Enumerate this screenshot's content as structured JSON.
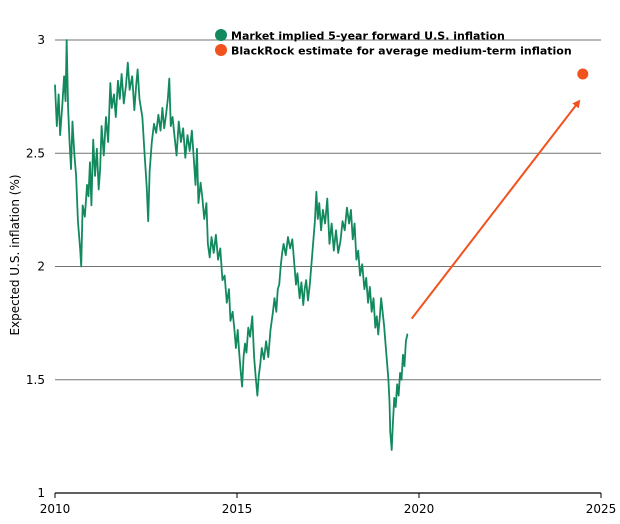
{
  "chart_data": {
    "type": "line",
    "ylabel": "Expected U.S. inflation (%)",
    "xlabel": "",
    "xlim": [
      2010,
      2025
    ],
    "ylim": [
      1,
      3
    ],
    "x_ticks": [
      "2010",
      "2015",
      "2020",
      "2025"
    ],
    "y_ticks": [
      "1",
      "1.5",
      "2",
      "2.5",
      "3"
    ],
    "grid": "horizontal",
    "legend_position": "top-right",
    "colors": {
      "market_series": "#138a5e",
      "blackrock_estimate": "#f2521d",
      "gridline": "#737373",
      "axis": "#000000",
      "text": "#000000"
    },
    "series": [
      {
        "name": "Market implied 5-year forward U.S. inflation",
        "points": [
          [
            2010.0,
            2.8
          ],
          [
            2010.05,
            2.62
          ],
          [
            2010.1,
            2.76
          ],
          [
            2010.14,
            2.58
          ],
          [
            2010.2,
            2.71
          ],
          [
            2010.25,
            2.84
          ],
          [
            2010.29,
            2.73
          ],
          [
            2010.32,
            3.0
          ],
          [
            2010.36,
            2.7
          ],
          [
            2010.4,
            2.55
          ],
          [
            2010.44,
            2.43
          ],
          [
            2010.48,
            2.64
          ],
          [
            2010.53,
            2.5
          ],
          [
            2010.58,
            2.4
          ],
          [
            2010.63,
            2.2
          ],
          [
            2010.69,
            2.08
          ],
          [
            2010.72,
            2.0
          ],
          [
            2010.76,
            2.27
          ],
          [
            2010.82,
            2.22
          ],
          [
            2010.88,
            2.36
          ],
          [
            2010.92,
            2.31
          ],
          [
            2010.96,
            2.46
          ],
          [
            2011.0,
            2.27
          ],
          [
            2011.05,
            2.56
          ],
          [
            2011.1,
            2.4
          ],
          [
            2011.15,
            2.52
          ],
          [
            2011.2,
            2.34
          ],
          [
            2011.24,
            2.43
          ],
          [
            2011.28,
            2.62
          ],
          [
            2011.34,
            2.49
          ],
          [
            2011.4,
            2.66
          ],
          [
            2011.46,
            2.55
          ],
          [
            2011.52,
            2.81
          ],
          [
            2011.56,
            2.7
          ],
          [
            2011.62,
            2.76
          ],
          [
            2011.67,
            2.66
          ],
          [
            2011.73,
            2.82
          ],
          [
            2011.78,
            2.74
          ],
          [
            2011.83,
            2.85
          ],
          [
            2011.89,
            2.72
          ],
          [
            2011.95,
            2.8
          ],
          [
            2012.0,
            2.9
          ],
          [
            2012.05,
            2.78
          ],
          [
            2012.12,
            2.84
          ],
          [
            2012.18,
            2.69
          ],
          [
            2012.23,
            2.8
          ],
          [
            2012.27,
            2.87
          ],
          [
            2012.32,
            2.74
          ],
          [
            2012.4,
            2.66
          ],
          [
            2012.46,
            2.5
          ],
          [
            2012.52,
            2.35
          ],
          [
            2012.56,
            2.2
          ],
          [
            2012.6,
            2.42
          ],
          [
            2012.66,
            2.55
          ],
          [
            2012.72,
            2.63
          ],
          [
            2012.78,
            2.59
          ],
          [
            2012.84,
            2.67
          ],
          [
            2012.9,
            2.6
          ],
          [
            2012.95,
            2.7
          ],
          [
            2013.0,
            2.61
          ],
          [
            2013.05,
            2.67
          ],
          [
            2013.1,
            2.74
          ],
          [
            2013.14,
            2.83
          ],
          [
            2013.18,
            2.62
          ],
          [
            2013.23,
            2.66
          ],
          [
            2013.28,
            2.58
          ],
          [
            2013.34,
            2.49
          ],
          [
            2013.4,
            2.64
          ],
          [
            2013.46,
            2.55
          ],
          [
            2013.52,
            2.61
          ],
          [
            2013.58,
            2.48
          ],
          [
            2013.64,
            2.58
          ],
          [
            2013.7,
            2.51
          ],
          [
            2013.76,
            2.6
          ],
          [
            2013.82,
            2.46
          ],
          [
            2013.86,
            2.36
          ],
          [
            2013.9,
            2.52
          ],
          [
            2013.94,
            2.28
          ],
          [
            2014.0,
            2.37
          ],
          [
            2014.05,
            2.3
          ],
          [
            2014.1,
            2.21
          ],
          [
            2014.16,
            2.28
          ],
          [
            2014.2,
            2.1
          ],
          [
            2014.25,
            2.04
          ],
          [
            2014.3,
            2.13
          ],
          [
            2014.36,
            2.06
          ],
          [
            2014.42,
            2.14
          ],
          [
            2014.48,
            2.03
          ],
          [
            2014.54,
            2.08
          ],
          [
            2014.6,
            1.94
          ],
          [
            2014.66,
            1.96
          ],
          [
            2014.72,
            1.84
          ],
          [
            2014.78,
            1.9
          ],
          [
            2014.82,
            1.76
          ],
          [
            2014.88,
            1.8
          ],
          [
            2014.93,
            1.72
          ],
          [
            2014.97,
            1.64
          ],
          [
            2015.02,
            1.72
          ],
          [
            2015.06,
            1.62
          ],
          [
            2015.1,
            1.54
          ],
          [
            2015.14,
            1.47
          ],
          [
            2015.18,
            1.6
          ],
          [
            2015.22,
            1.66
          ],
          [
            2015.26,
            1.62
          ],
          [
            2015.31,
            1.73
          ],
          [
            2015.36,
            1.69
          ],
          [
            2015.42,
            1.78
          ],
          [
            2015.47,
            1.6
          ],
          [
            2015.52,
            1.5
          ],
          [
            2015.56,
            1.43
          ],
          [
            2015.6,
            1.52
          ],
          [
            2015.64,
            1.57
          ],
          [
            2015.68,
            1.64
          ],
          [
            2015.74,
            1.59
          ],
          [
            2015.8,
            1.67
          ],
          [
            2015.86,
            1.6
          ],
          [
            2015.92,
            1.72
          ],
          [
            2015.98,
            1.79
          ],
          [
            2016.03,
            1.86
          ],
          [
            2016.08,
            1.8
          ],
          [
            2016.12,
            1.9
          ],
          [
            2016.16,
            1.92
          ],
          [
            2016.2,
            2.0
          ],
          [
            2016.24,
            2.06
          ],
          [
            2016.28,
            2.1
          ],
          [
            2016.34,
            2.05
          ],
          [
            2016.4,
            2.13
          ],
          [
            2016.46,
            2.08
          ],
          [
            2016.52,
            2.12
          ],
          [
            2016.58,
            2.0
          ],
          [
            2016.62,
            1.92
          ],
          [
            2016.66,
            1.97
          ],
          [
            2016.72,
            1.86
          ],
          [
            2016.77,
            1.93
          ],
          [
            2016.82,
            1.83
          ],
          [
            2016.86,
            1.9
          ],
          [
            2016.9,
            1.94
          ],
          [
            2016.95,
            1.85
          ],
          [
            2017.0,
            1.92
          ],
          [
            2017.05,
            2.02
          ],
          [
            2017.1,
            2.12
          ],
          [
            2017.14,
            2.2
          ],
          [
            2017.18,
            2.33
          ],
          [
            2017.22,
            2.21
          ],
          [
            2017.26,
            2.28
          ],
          [
            2017.31,
            2.16
          ],
          [
            2017.36,
            2.25
          ],
          [
            2017.42,
            2.19
          ],
          [
            2017.48,
            2.3
          ],
          [
            2017.54,
            2.1
          ],
          [
            2017.6,
            2.19
          ],
          [
            2017.66,
            2.07
          ],
          [
            2017.72,
            2.16
          ],
          [
            2017.78,
            2.06
          ],
          [
            2017.84,
            2.11
          ],
          [
            2017.9,
            2.2
          ],
          [
            2017.96,
            2.16
          ],
          [
            2018.02,
            2.26
          ],
          [
            2018.08,
            2.19
          ],
          [
            2018.13,
            2.25
          ],
          [
            2018.18,
            2.12
          ],
          [
            2018.23,
            2.19
          ],
          [
            2018.28,
            2.03
          ],
          [
            2018.33,
            2.07
          ],
          [
            2018.38,
            1.96
          ],
          [
            2018.44,
            2.01
          ],
          [
            2018.5,
            1.9
          ],
          [
            2018.55,
            1.95
          ],
          [
            2018.6,
            1.84
          ],
          [
            2018.65,
            1.91
          ],
          [
            2018.7,
            1.8
          ],
          [
            2018.75,
            1.86
          ],
          [
            2018.8,
            1.73
          ],
          [
            2018.84,
            1.78
          ],
          [
            2018.88,
            1.7
          ],
          [
            2018.92,
            1.77
          ],
          [
            2018.96,
            1.86
          ],
          [
            2019.0,
            1.8
          ],
          [
            2019.04,
            1.74
          ],
          [
            2019.08,
            1.66
          ],
          [
            2019.12,
            1.58
          ],
          [
            2019.16,
            1.5
          ],
          [
            2019.19,
            1.4
          ],
          [
            2019.21,
            1.27
          ],
          [
            2019.23,
            1.23
          ],
          [
            2019.25,
            1.19
          ],
          [
            2019.28,
            1.3
          ],
          [
            2019.32,
            1.42
          ],
          [
            2019.36,
            1.38
          ],
          [
            2019.4,
            1.48
          ],
          [
            2019.44,
            1.43
          ],
          [
            2019.48,
            1.53
          ],
          [
            2019.52,
            1.5
          ],
          [
            2019.56,
            1.61
          ],
          [
            2019.6,
            1.56
          ],
          [
            2019.64,
            1.67
          ],
          [
            2019.68,
            1.7
          ]
        ]
      }
    ],
    "estimate": {
      "name": "BlackRock estimate for average medium-term inflation",
      "x": 2024.5,
      "y": 2.85
    },
    "arrow": {
      "from": [
        2019.8,
        1.77
      ],
      "to": [
        2024.4,
        2.73
      ]
    }
  },
  "legend": {
    "items": [
      {
        "label": "Market implied 5-year forward U.S. inflation",
        "color": "#138a5e"
      },
      {
        "label": "BlackRock estimate for average medium-term inflation",
        "color": "#f2521d"
      }
    ]
  }
}
